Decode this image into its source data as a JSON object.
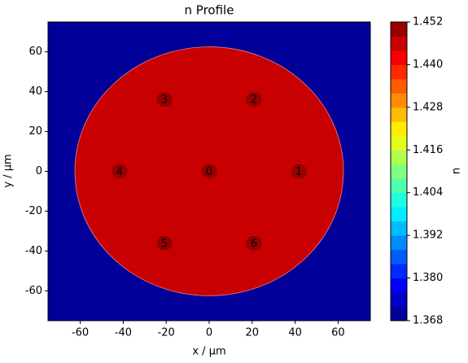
{
  "chart_data": {
    "type": "contour",
    "title": "n Profile",
    "x_label": "x / µm",
    "y_label": "y / µm",
    "xlim": [
      -75,
      75
    ],
    "ylim": [
      -75,
      75
    ],
    "xticks": [
      -60,
      -40,
      -20,
      0,
      20,
      40,
      60
    ],
    "yticks": [
      -60,
      -40,
      -20,
      0,
      20,
      40,
      60
    ],
    "background": {
      "n": 1.368
    },
    "cladding": {
      "x": 0,
      "y": 0,
      "r": 62.5,
      "n": 1.445
    },
    "cores": [
      {
        "label": "0",
        "x": 0,
        "y": 0,
        "r": 3.4,
        "n": 1.452
      },
      {
        "label": "1",
        "x": 41.7,
        "y": 0,
        "r": 3.4,
        "n": 1.452
      },
      {
        "label": "2",
        "x": 20.85,
        "y": 36.1,
        "r": 3.4,
        "n": 1.452
      },
      {
        "label": "3",
        "x": -20.85,
        "y": 36.1,
        "r": 3.4,
        "n": 1.452
      },
      {
        "label": "4",
        "x": -41.7,
        "y": 0,
        "r": 3.4,
        "n": 1.452
      },
      {
        "label": "5",
        "x": -20.85,
        "y": -36.1,
        "r": 3.4,
        "n": 1.452
      },
      {
        "label": "6",
        "x": 20.85,
        "y": -36.1,
        "r": 3.4,
        "n": 1.452
      }
    ],
    "colorbar": {
      "label": "n",
      "clim": [
        1.368,
        1.452
      ],
      "ticks": [
        1.368,
        {
          "value": 1.38,
          "label": "1.380"
        },
        1.392,
        1.404,
        1.416,
        1.428,
        {
          "value": 1.44,
          "label": "1.440"
        },
        1.452
      ],
      "colors": [
        "#000098",
        "#0000c8",
        "#0000f9",
        "#002aff",
        "#005bff",
        "#008cff",
        "#00bcff",
        "#00edff",
        "#1effe1",
        "#4fffb0",
        "#80ff80",
        "#b0ff4f",
        "#e1ff1e",
        "#ffed00",
        "#ffbc00",
        "#ff8c00",
        "#ff5b00",
        "#ff2a00",
        "#f90000",
        "#c80000",
        "#980000"
      ]
    }
  }
}
